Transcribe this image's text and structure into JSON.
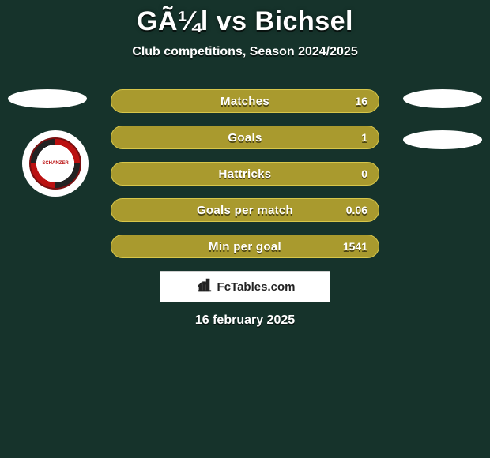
{
  "background_color": "#16332b",
  "title": "GÃ¼l vs Bichsel",
  "subtitle": "Club competitions, Season 2024/2025",
  "club_badge": {
    "top_text": "FC INGOLSTADT",
    "inner_text": "SCHANZER",
    "bottom_text": "04",
    "colors": {
      "ring_a": "#b11",
      "ring_b": "#222",
      "outer": "#ffffff"
    }
  },
  "stats": {
    "bar_bg": "#a99a2e",
    "bar_border": "#d7c64a",
    "rows": [
      {
        "label": "Matches",
        "value": "16"
      },
      {
        "label": "Goals",
        "value": "1"
      },
      {
        "label": "Hattricks",
        "value": "0"
      },
      {
        "label": "Goals per match",
        "value": "0.06"
      },
      {
        "label": "Min per goal",
        "value": "1541"
      }
    ]
  },
  "branding": {
    "icon": "bar-chart-icon",
    "text": "FcTables.com"
  },
  "date": "16 february 2025",
  "side_ellipse_color": "#ffffff"
}
